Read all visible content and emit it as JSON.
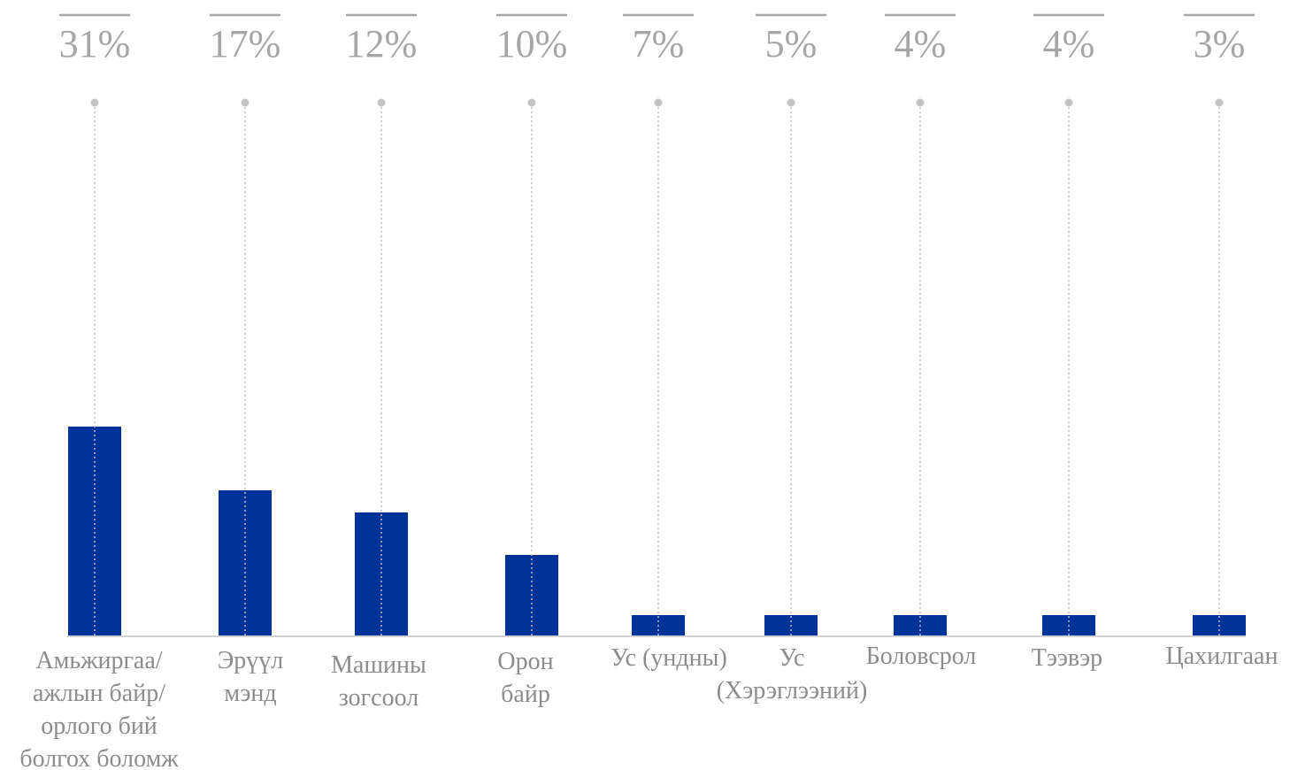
{
  "chart_data": {
    "type": "bar",
    "categories": [
      "Амьжиргаа/ ажлын байр/ орлого бий болгох боломж",
      "Эрүүл мэнд",
      "Машины зогсоол",
      "Орон байр",
      "Ус (ундны)",
      "Ус (Хэрэглээний)",
      "Боловсрол",
      "Тээвэр",
      "Цахилгаан"
    ],
    "category_label_lines": [
      [
        "Амьжиргаа/",
        "ажлын байр/",
        "орлого бий",
        "болгох боломж"
      ],
      [
        "Эрүүл",
        "мэнд"
      ],
      [
        "Машины",
        "зогсоол"
      ],
      [
        "Орон",
        "байр"
      ],
      [
        "Ус (ундны)"
      ],
      [
        "Ус",
        "(Хэрэглээний)"
      ],
      [
        "Боловсрол"
      ],
      [
        "Тээвэр"
      ],
      [
        "Цахилгаан"
      ]
    ],
    "value_labels": [
      "31%",
      "17%",
      "12%",
      "10%",
      "7%",
      "5%",
      "4%",
      "4%",
      "3%"
    ],
    "values": [
      31,
      17,
      12,
      10,
      7,
      5,
      4,
      4,
      3
    ],
    "bar_color": "#003399",
    "title": "",
    "xlabel": "",
    "ylabel": "",
    "grid": false,
    "legend": "none"
  }
}
